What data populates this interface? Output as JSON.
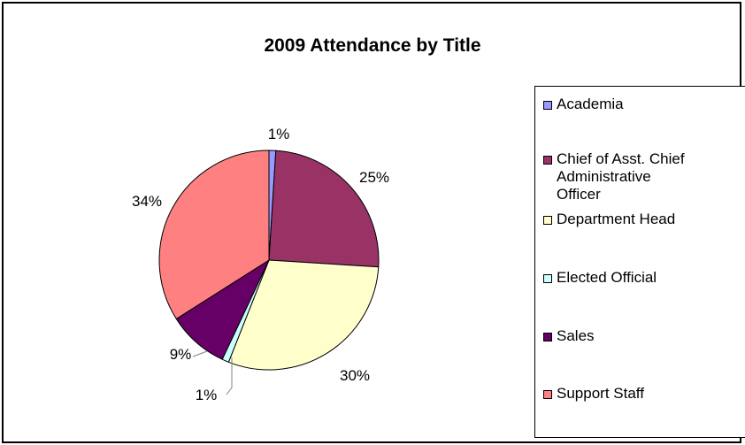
{
  "chart_data": {
    "type": "pie",
    "title": "2009 Attendance by Title",
    "categories": [
      "Academia",
      "Chief of Asst. Chief Administrative Officer",
      "Department Head",
      "Elected Official",
      "Sales",
      "Support Staff"
    ],
    "values": [
      1,
      25,
      30,
      1,
      9,
      34
    ],
    "labels": [
      "1%",
      "25%",
      "30%",
      "1%",
      "9%",
      "34%"
    ],
    "colors": [
      "#9999FF",
      "#993366",
      "#FFFFCC",
      "#CCFFFF",
      "#660066",
      "#FF8080"
    ],
    "legend_position": "right"
  }
}
